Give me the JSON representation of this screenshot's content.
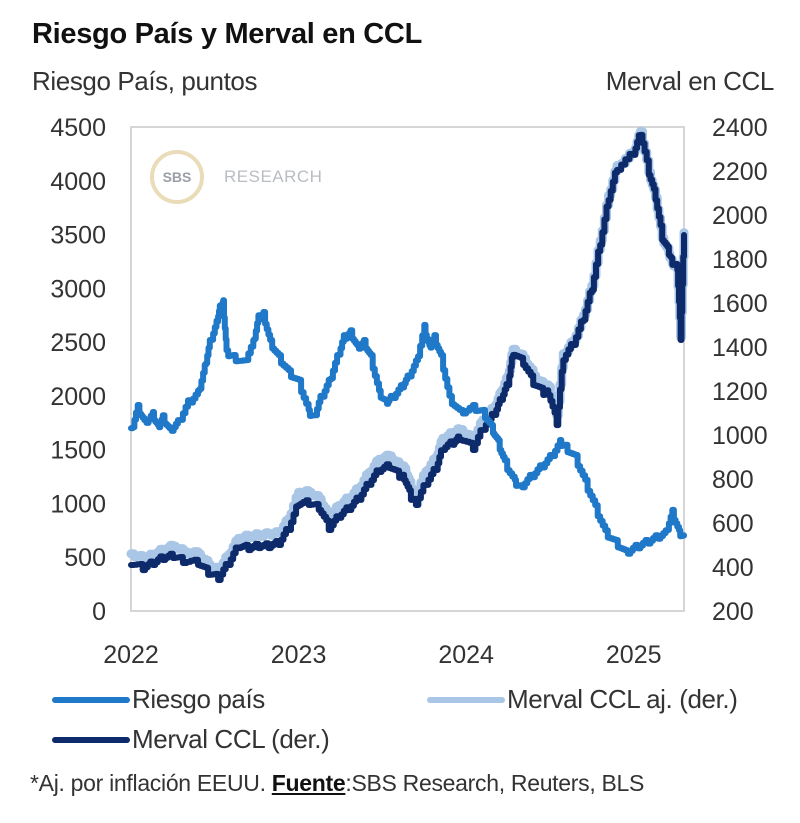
{
  "title": "Riesgo País y Merval en CCL",
  "left_axis_title": "Riesgo País, puntos",
  "right_axis_title": "Merval en CCL",
  "watermark": {
    "badge": "SBS",
    "text": "RESEARCH"
  },
  "legend": [
    {
      "label": "Riesgo país",
      "color": "#1f78c8"
    },
    {
      "label": "Merval CCL aj. (der.)",
      "color": "#a9c6e6"
    },
    {
      "label": "Merval CCL (der.)",
      "color": "#0d2a6b"
    }
  ],
  "footnote": {
    "prefix": "*Aj. por inflación EEUU. ",
    "source_label": "Fuente",
    "source_text": ":SBS Research, Reuters, BLS"
  },
  "chart_data": {
    "type": "line",
    "title": "Riesgo País y Merval en CCL",
    "xlabel": "",
    "ylabel": "Riesgo País, puntos",
    "y2label": "Merval en CCL",
    "xlim": [
      2022.0,
      2025.3
    ],
    "xticks": [
      2022,
      2023,
      2024,
      2025
    ],
    "xtick_labels": [
      "2022",
      "2023",
      "2024",
      "2025"
    ],
    "ylim": [
      0,
      4500
    ],
    "yticks": [
      0,
      500,
      1000,
      1500,
      2000,
      2500,
      3000,
      3500,
      4000,
      4500
    ],
    "y2lim": [
      200,
      2400
    ],
    "y2ticks": [
      200,
      400,
      600,
      800,
      1000,
      1200,
      1400,
      1600,
      1800,
      2000,
      2200,
      2400
    ],
    "grid": false,
    "legend_position": "bottom",
    "series": [
      {
        "name": "Riesgo país",
        "axis": "left",
        "color": "#1f78c8",
        "x": [
          2022.0,
          2022.04,
          2022.08,
          2022.13,
          2022.16,
          2022.19,
          2022.23,
          2022.28,
          2022.34,
          2022.4,
          2022.44,
          2022.47,
          2022.51,
          2022.53,
          2022.55,
          2022.57,
          2022.61,
          2022.67,
          2022.73,
          2022.76,
          2022.79,
          2022.83,
          2022.88,
          2022.94,
          2023.0,
          2023.06,
          2023.09,
          2023.13,
          2023.18,
          2023.23,
          2023.27,
          2023.31,
          2023.35,
          2023.39,
          2023.43,
          2023.48,
          2023.52,
          2023.55,
          2023.61,
          2023.65,
          2023.7,
          2023.75,
          2023.78,
          2023.81,
          2023.85,
          2023.9,
          2023.96,
          2024.04,
          2024.1,
          2024.15,
          2024.19,
          2024.23,
          2024.29,
          2024.32,
          2024.38,
          2024.44,
          2024.5,
          2024.56,
          2024.59,
          2024.65,
          2024.71,
          2024.77,
          2024.83,
          2024.89,
          2024.95,
          2025.01,
          2025.07,
          2025.13,
          2025.19,
          2025.23,
          2025.27,
          2025.3
        ],
        "values": [
          1700,
          1915,
          1775,
          1850,
          1730,
          1820,
          1700,
          1775,
          1960,
          2050,
          2290,
          2520,
          2700,
          2840,
          2890,
          2425,
          2380,
          2330,
          2520,
          2750,
          2780,
          2520,
          2380,
          2240,
          2150,
          1870,
          1820,
          2000,
          2150,
          2380,
          2565,
          2610,
          2470,
          2520,
          2380,
          2050,
          1960,
          2000,
          2100,
          2190,
          2330,
          2660,
          2470,
          2565,
          2380,
          2000,
          1870,
          1915,
          1870,
          1730,
          1590,
          1400,
          1220,
          1170,
          1265,
          1355,
          1450,
          1590,
          1545,
          1450,
          1220,
          985,
          750,
          660,
          565,
          615,
          660,
          705,
          750,
          940,
          750,
          705
        ]
      },
      {
        "name": "Merval CCL aj. (der.)",
        "axis": "right",
        "color": "#a9c6e6",
        "x": [
          2022.0,
          2022.07,
          2022.13,
          2022.19,
          2022.25,
          2022.31,
          2022.4,
          2022.46,
          2022.52,
          2022.58,
          2022.64,
          2022.7,
          2022.76,
          2022.82,
          2022.88,
          2022.94,
          2023.0,
          2023.06,
          2023.12,
          2023.18,
          2023.24,
          2023.3,
          2023.36,
          2023.42,
          2023.48,
          2023.54,
          2023.6,
          2023.63,
          2023.67,
          2023.7,
          2023.76,
          2023.82,
          2023.86,
          2023.92,
          2023.96,
          2024.04,
          2024.1,
          2024.17,
          2024.21,
          2024.25,
          2024.28,
          2024.34,
          2024.4,
          2024.46,
          2024.49,
          2024.54,
          2024.58,
          2024.64,
          2024.7,
          2024.75,
          2024.8,
          2024.85,
          2024.9,
          2025.0,
          2025.04,
          2025.09,
          2025.13,
          2025.17,
          2025.21,
          2025.23,
          2025.26,
          2025.28,
          2025.3
        ],
        "values": [
          460,
          440,
          455,
          480,
          495,
          470,
          460,
          410,
          385,
          455,
          530,
          540,
          545,
          550,
          555,
          620,
          740,
          740,
          710,
          625,
          680,
          715,
          760,
          830,
          890,
          905,
          860,
          850,
          760,
          735,
          835,
          900,
          985,
          1010,
          1025,
          980,
          1070,
          1130,
          1200,
          1270,
          1390,
          1350,
          1270,
          1225,
          1220,
          1090,
          1370,
          1430,
          1545,
          1680,
          1885,
          2090,
          2225,
          2290,
          2380,
          2195,
          2080,
          1895,
          1825,
          1780,
          1760,
          1445,
          1920
        ]
      },
      {
        "name": "Merval CCL (der.)",
        "axis": "right",
        "color": "#0d2a6b",
        "x": [
          2022.0,
          2022.07,
          2022.13,
          2022.19,
          2022.25,
          2022.31,
          2022.4,
          2022.46,
          2022.52,
          2022.58,
          2022.64,
          2022.7,
          2022.76,
          2022.82,
          2022.88,
          2022.94,
          2023.0,
          2023.06,
          2023.12,
          2023.18,
          2023.24,
          2023.3,
          2023.36,
          2023.42,
          2023.48,
          2023.54,
          2023.6,
          2023.63,
          2023.67,
          2023.7,
          2023.76,
          2023.82,
          2023.86,
          2023.92,
          2023.96,
          2024.04,
          2024.1,
          2024.17,
          2024.21,
          2024.25,
          2024.28,
          2024.34,
          2024.4,
          2024.46,
          2024.49,
          2024.54,
          2024.58,
          2024.64,
          2024.7,
          2024.75,
          2024.8,
          2024.85,
          2024.9,
          2025.0,
          2025.04,
          2025.09,
          2025.13,
          2025.17,
          2025.21,
          2025.23,
          2025.26,
          2025.28,
          2025.3
        ],
        "values": [
          409,
          386,
          409,
          432,
          441,
          418,
          409,
          364,
          341,
          409,
          486,
          477,
          486,
          486,
          500,
          568,
          682,
          682,
          659,
          568,
          623,
          659,
          705,
          773,
          832,
          850,
          805,
          795,
          705,
          682,
          773,
          841,
          932,
          955,
          977,
          932,
          1023,
          1091,
          1159,
          1227,
          1364,
          1318,
          1227,
          1182,
          1182,
          1045,
          1341,
          1409,
          1523,
          1659,
          1864,
          2068,
          2205,
          2273,
          2364,
          2182,
          2068,
          1886,
          1818,
          1773,
          1750,
          1432,
          1909
        ]
      }
    ]
  }
}
